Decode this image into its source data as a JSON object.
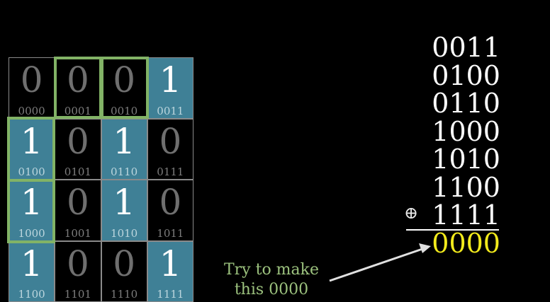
{
  "grid": {
    "cells": [
      {
        "bit": "0",
        "index": "0000",
        "on": false
      },
      {
        "bit": "0",
        "index": "0001",
        "on": false
      },
      {
        "bit": "0",
        "index": "0010",
        "on": false
      },
      {
        "bit": "1",
        "index": "0011",
        "on": true
      },
      {
        "bit": "1",
        "index": "0100",
        "on": true
      },
      {
        "bit": "0",
        "index": "0101",
        "on": false
      },
      {
        "bit": "1",
        "index": "0110",
        "on": true
      },
      {
        "bit": "0",
        "index": "0111",
        "on": false
      },
      {
        "bit": "1",
        "index": "1000",
        "on": true
      },
      {
        "bit": "0",
        "index": "1001",
        "on": false
      },
      {
        "bit": "1",
        "index": "1010",
        "on": true
      },
      {
        "bit": "0",
        "index": "1011",
        "on": false
      },
      {
        "bit": "1",
        "index": "1100",
        "on": true
      },
      {
        "bit": "0",
        "index": "1101",
        "on": false
      },
      {
        "bit": "0",
        "index": "1110",
        "on": false
      },
      {
        "bit": "1",
        "index": "1111",
        "on": true
      }
    ],
    "highlighted_indices": [
      "0001",
      "0010",
      "0100",
      "1000"
    ]
  },
  "xor_sum": {
    "rows": [
      "0011",
      "0100",
      "0110",
      "1000",
      "1010",
      "1100",
      "1111"
    ],
    "operator": "⊕",
    "result": "0000"
  },
  "annotation": {
    "line1": "Try to make",
    "line2": "this 0000"
  },
  "colors": {
    "on_cell": "#3f8096",
    "highlight": "#82b366",
    "result": "#f2ea1c"
  }
}
